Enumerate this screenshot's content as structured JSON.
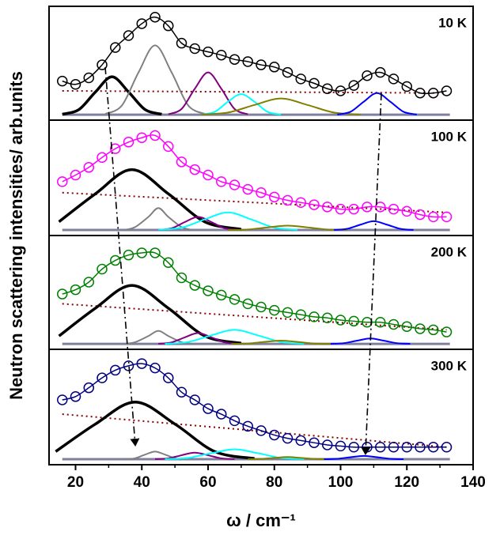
{
  "chart_data": [
    {
      "type": "line",
      "label": "10 K",
      "ylabel": "Neutron scattering intensities/ arb.units",
      "xlim": [
        12,
        140
      ],
      "ylim": [
        -0.05,
        1
      ],
      "baseline": 0,
      "x": [
        16,
        20,
        24,
        28,
        32,
        36,
        40,
        44,
        48,
        52,
        56,
        60,
        64,
        68,
        72,
        76,
        80,
        84,
        88,
        92,
        96,
        100,
        104,
        108,
        112,
        116,
        120,
        124,
        128,
        132
      ],
      "series": [
        {
          "color": "#000000",
          "values": [
            0.31,
            0.28,
            0.34,
            0.46,
            0.62,
            0.73,
            0.84,
            0.9,
            0.82,
            0.66,
            0.61,
            0.58,
            0.55,
            0.51,
            0.49,
            0.46,
            0.44,
            0.39,
            0.33,
            0.29,
            0.24,
            0.22,
            0.27,
            0.36,
            0.39,
            0.33,
            0.26,
            0.2,
            0.2,
            0.22
          ]
        }
      ],
      "components": [
        {
          "color": "#000000",
          "x": [
            16,
            21,
            26,
            31,
            36,
            41,
            46
          ],
          "values": [
            0.004,
            0.047,
            0.21,
            0.35,
            0.21,
            0.047,
            0.004
          ]
        },
        {
          "color": "#808080",
          "x": [
            29,
            34,
            39,
            44,
            49,
            54,
            59
          ],
          "values": [
            0.007,
            0.086,
            0.39,
            0.64,
            0.39,
            0.086,
            0.007
          ]
        },
        {
          "color": "#800080",
          "x": [
            48,
            52,
            56,
            60,
            64,
            68,
            72
          ],
          "values": [
            0.004,
            0.053,
            0.24,
            0.39,
            0.24,
            0.053,
            0.004
          ]
        },
        {
          "color": "#00ffff",
          "x": [
            58,
            62,
            66,
            70,
            74,
            78,
            82
          ],
          "values": [
            0.002,
            0.026,
            0.12,
            0.19,
            0.12,
            0.026,
            0.002
          ]
        },
        {
          "color": "#808000",
          "x": [
            58,
            66,
            74,
            82,
            90,
            98,
            106
          ],
          "values": [
            0.002,
            0.02,
            0.09,
            0.15,
            0.09,
            0.02,
            0.002
          ]
        },
        {
          "color": "#0000ff",
          "x": [
            99,
            103,
            107,
            111,
            115,
            119,
            123
          ],
          "values": [
            0.002,
            0.027,
            0.12,
            0.2,
            0.12,
            0.027,
            0.002
          ]
        }
      ],
      "background": {
        "color": "#8b0000",
        "x": [
          16,
          132
        ],
        "values": [
          0.22,
          0.2
        ]
      }
    },
    {
      "type": "line",
      "label": "100 K",
      "xlim": [
        12,
        140
      ],
      "ylim": [
        -0.05,
        1
      ],
      "baseline": 0,
      "x": [
        16,
        20,
        24,
        28,
        32,
        36,
        40,
        44,
        48,
        52,
        56,
        60,
        64,
        68,
        72,
        76,
        80,
        84,
        88,
        92,
        96,
        100,
        104,
        108,
        112,
        116,
        120,
        124,
        128,
        132
      ],
      "series": [
        {
          "color": "#ff00ff",
          "values": [
            0.44,
            0.5,
            0.57,
            0.66,
            0.74,
            0.8,
            0.84,
            0.86,
            0.76,
            0.62,
            0.55,
            0.5,
            0.44,
            0.41,
            0.37,
            0.34,
            0.3,
            0.27,
            0.25,
            0.23,
            0.21,
            0.19,
            0.19,
            0.21,
            0.21,
            0.19,
            0.17,
            0.14,
            0.12,
            0.12
          ]
        }
      ],
      "components": [
        {
          "color": "#000000",
          "x": [
            15,
            26,
            37,
            48,
            59,
            70
          ],
          "values": [
            0.075,
            0.33,
            0.55,
            0.33,
            0.075,
            0.006
          ]
        },
        {
          "color": "#808080",
          "x": [
            35,
            38,
            42,
            45,
            48,
            52,
            55
          ],
          "values": [
            0.002,
            0.027,
            0.12,
            0.2,
            0.12,
            0.027,
            0.002
          ]
        },
        {
          "color": "#800080",
          "x": [
            45,
            49,
            53,
            57,
            61,
            65,
            69
          ],
          "values": [
            0.001,
            0.016,
            0.073,
            0.12,
            0.073,
            0.016,
            0.001
          ]
        },
        {
          "color": "#00ffff",
          "x": [
            45,
            52,
            59,
            66,
            73,
            80,
            87
          ],
          "values": [
            0.002,
            0.022,
            0.097,
            0.16,
            0.097,
            0.022,
            0.002
          ]
        },
        {
          "color": "#808000",
          "x": [
            66,
            72,
            78,
            84,
            90,
            96,
            102
          ],
          "values": [
            0,
            0.005,
            0.024,
            0.04,
            0.024,
            0.005,
            0
          ]
        },
        {
          "color": "#0000ff",
          "x": [
            98,
            102,
            106,
            110,
            114,
            118,
            122
          ],
          "values": [
            0.001,
            0.011,
            0.049,
            0.08,
            0.049,
            0.011,
            0.001
          ]
        }
      ],
      "background": {
        "color": "#8b0000",
        "x": [
          16,
          132
        ],
        "values": [
          0.34,
          0.16
        ]
      }
    },
    {
      "type": "line",
      "label": "200 K",
      "xlim": [
        12,
        140
      ],
      "ylim": [
        -0.05,
        1
      ],
      "baseline": 0,
      "x": [
        16,
        20,
        24,
        28,
        32,
        36,
        40,
        44,
        48,
        52,
        56,
        60,
        64,
        68,
        72,
        76,
        80,
        84,
        88,
        92,
        96,
        100,
        104,
        108,
        112,
        116,
        120,
        124,
        128,
        132
      ],
      "series": [
        {
          "color": "#008000",
          "values": [
            0.46,
            0.5,
            0.57,
            0.69,
            0.77,
            0.82,
            0.84,
            0.84,
            0.75,
            0.61,
            0.54,
            0.49,
            0.45,
            0.41,
            0.37,
            0.34,
            0.31,
            0.29,
            0.27,
            0.25,
            0.24,
            0.22,
            0.21,
            0.2,
            0.2,
            0.18,
            0.16,
            0.14,
            0.13,
            0.11
          ]
        }
      ],
      "components": [
        {
          "color": "#000000",
          "x": [
            15,
            26,
            37,
            48,
            59,
            70
          ],
          "values": [
            0.073,
            0.33,
            0.54,
            0.33,
            0.073,
            0.006
          ]
        },
        {
          "color": "#808080",
          "x": [
            35,
            38,
            42,
            45,
            48,
            52,
            55
          ],
          "values": [
            0.001,
            0.016,
            0.073,
            0.12,
            0.073,
            0.016,
            0.001
          ]
        },
        {
          "color": "#800080",
          "x": [
            45,
            49,
            53,
            57,
            61,
            65,
            69
          ],
          "values": [
            0.001,
            0.014,
            0.061,
            0.1,
            0.061,
            0.014,
            0.001
          ]
        },
        {
          "color": "#00ffff",
          "x": [
            47,
            54,
            61,
            68,
            75,
            82,
            89
          ],
          "values": [
            0.001,
            0.018,
            0.079,
            0.13,
            0.079,
            0.018,
            0.001
          ]
        },
        {
          "color": "#808000",
          "x": [
            67,
            72,
            77,
            82,
            87,
            92,
            97
          ],
          "values": [
            0,
            0.004,
            0.018,
            0.03,
            0.018,
            0.004,
            0
          ]
        },
        {
          "color": "#0000ff",
          "x": [
            97,
            101,
            105,
            109,
            113,
            117,
            121
          ],
          "values": [
            0.001,
            0.007,
            0.03,
            0.05,
            0.03,
            0.007,
            0.001
          ]
        }
      ],
      "background": {
        "color": "#8b0000",
        "x": [
          16,
          132
        ],
        "values": [
          0.37,
          0.13
        ]
      }
    },
    {
      "type": "line",
      "label": "300 K",
      "xlabel": "ω / cm⁻¹",
      "xlim": [
        12,
        140
      ],
      "ylim": [
        -0.05,
        1
      ],
      "baseline": 0,
      "xticks": [
        20,
        40,
        60,
        80,
        100,
        120,
        140
      ],
      "xminorticks": [
        30,
        50,
        70,
        90,
        110,
        130
      ],
      "x": [
        16,
        20,
        24,
        28,
        32,
        36,
        40,
        44,
        48,
        52,
        56,
        60,
        64,
        68,
        72,
        76,
        80,
        84,
        88,
        92,
        96,
        100,
        104,
        108,
        112,
        116,
        120,
        124,
        128,
        132
      ],
      "series": [
        {
          "color": "#000080",
          "values": [
            0.54,
            0.57,
            0.65,
            0.74,
            0.81,
            0.85,
            0.87,
            0.83,
            0.74,
            0.61,
            0.54,
            0.46,
            0.41,
            0.35,
            0.3,
            0.26,
            0.22,
            0.19,
            0.17,
            0.15,
            0.13,
            0.12,
            0.11,
            0.11,
            0.11,
            0.11,
            0.11,
            0.11,
            0.11,
            0.11
          ]
        }
      ],
      "components": [
        {
          "color": "#000000",
          "x": [
            14,
            26,
            38,
            50,
            62,
            74
          ],
          "values": [
            0.07,
            0.32,
            0.52,
            0.32,
            0.07,
            0.006
          ]
        },
        {
          "color": "#808080",
          "x": [
            35,
            38,
            41,
            44,
            47,
            50,
            53
          ],
          "values": [
            0.001,
            0.009,
            0.042,
            0.07,
            0.042,
            0.009,
            0.001
          ]
        },
        {
          "color": "#800080",
          "x": [
            44,
            48,
            52,
            56,
            60,
            64,
            68
          ],
          "values": [
            0.001,
            0.008,
            0.036,
            0.06,
            0.036,
            0.008,
            0.001
          ]
        },
        {
          "color": "#00ffff",
          "x": [
            47,
            54,
            61,
            68,
            75,
            82,
            89
          ],
          "values": [
            0.001,
            0.012,
            0.055,
            0.09,
            0.055,
            0.012,
            0.001
          ]
        },
        {
          "color": "#808000",
          "x": [
            72,
            76,
            80,
            84,
            88,
            92,
            96
          ],
          "values": [
            0,
            0.003,
            0.012,
            0.02,
            0.012,
            0.003,
            0
          ]
        },
        {
          "color": "#0000ff",
          "x": [
            95,
            99,
            103,
            107,
            111,
            115,
            119
          ],
          "values": [
            0,
            0.004,
            0.018,
            0.03,
            0.018,
            0.004,
            0
          ]
        }
      ],
      "background": {
        "color": "#8b0000",
        "x": [
          16,
          132
        ],
        "values": [
          0.41,
          0.11
        ]
      }
    }
  ]
}
